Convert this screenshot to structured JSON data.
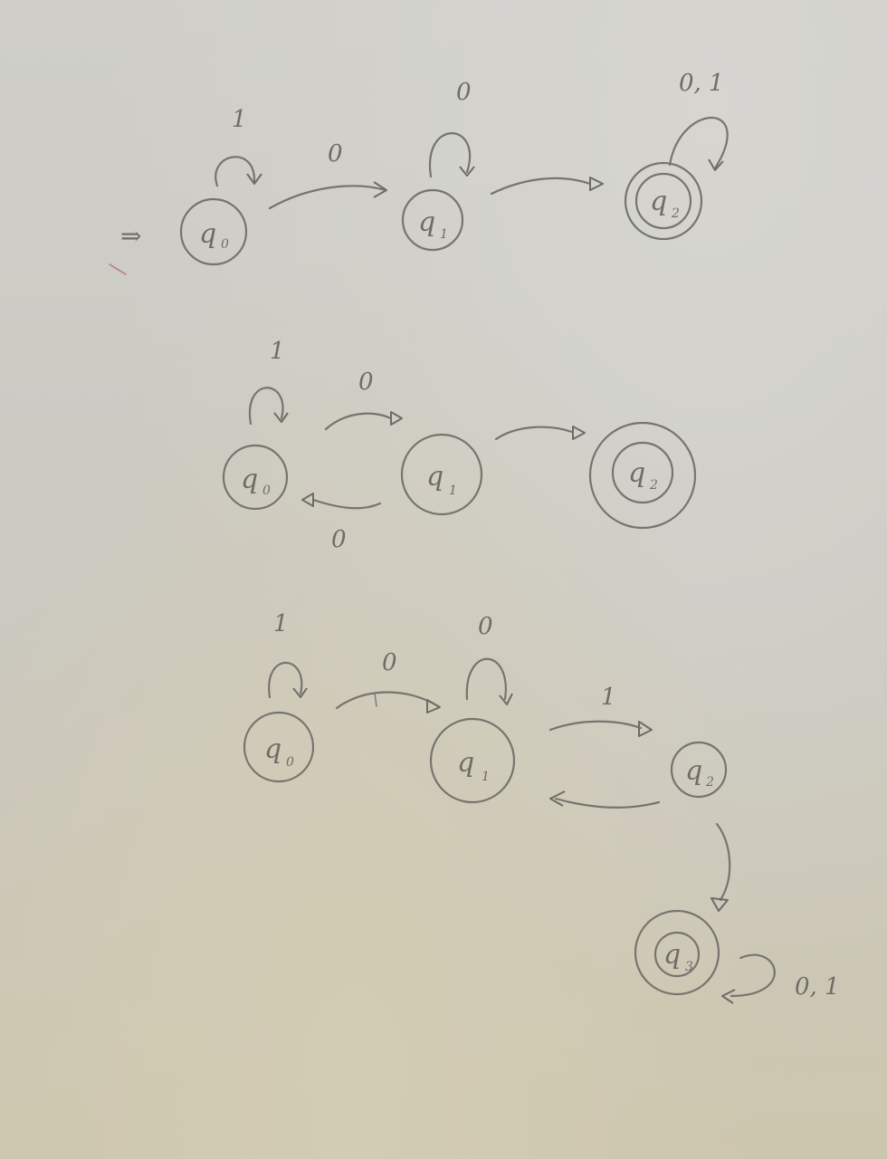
{
  "diagrams": [
    {
      "states": [
        {
          "id": "q0",
          "letter": "q",
          "sub": "0",
          "accepting": false
        },
        {
          "id": "q1",
          "letter": "q",
          "sub": "1",
          "accepting": false
        },
        {
          "id": "q2",
          "letter": "q",
          "sub": "2",
          "accepting": true
        }
      ],
      "start_marker": "⇒",
      "transitions": [
        {
          "from": "q0",
          "to": "q0",
          "label": "1"
        },
        {
          "from": "q0",
          "to": "q1",
          "label": "0"
        },
        {
          "from": "q1",
          "to": "q1",
          "label": "0"
        },
        {
          "from": "q1",
          "to": "q2",
          "label": ""
        },
        {
          "from": "q2",
          "to": "q2",
          "label": "0, 1"
        }
      ]
    },
    {
      "states": [
        {
          "id": "q0",
          "letter": "q",
          "sub": "0",
          "accepting": false
        },
        {
          "id": "q1",
          "letter": "q",
          "sub": "1",
          "accepting": false
        },
        {
          "id": "q2",
          "letter": "q",
          "sub": "2",
          "accepting": true
        }
      ],
      "transitions": [
        {
          "from": "q0",
          "to": "q0",
          "label": "1"
        },
        {
          "from": "q0",
          "to": "q1",
          "label": "0"
        },
        {
          "from": "q1",
          "to": "q0",
          "label": "0"
        },
        {
          "from": "q1",
          "to": "q2",
          "label": ""
        }
      ]
    },
    {
      "states": [
        {
          "id": "q0",
          "letter": "q",
          "sub": "0",
          "accepting": false
        },
        {
          "id": "q1",
          "letter": "q",
          "sub": "1",
          "accepting": false
        },
        {
          "id": "q2",
          "letter": "q",
          "sub": "2",
          "accepting": false
        },
        {
          "id": "q3",
          "letter": "q",
          "sub": "3",
          "accepting": true
        }
      ],
      "transitions": [
        {
          "from": "q0",
          "to": "q0",
          "label": "1"
        },
        {
          "from": "q0",
          "to": "q1",
          "label": "0"
        },
        {
          "from": "q1",
          "to": "q1",
          "label": "0"
        },
        {
          "from": "q1",
          "to": "q2",
          "label": "1"
        },
        {
          "from": "q2",
          "to": "q1",
          "label": ""
        },
        {
          "from": "q2",
          "to": "q3",
          "label": ""
        },
        {
          "from": "q3",
          "to": "q3",
          "label": "0, 1"
        }
      ]
    }
  ]
}
